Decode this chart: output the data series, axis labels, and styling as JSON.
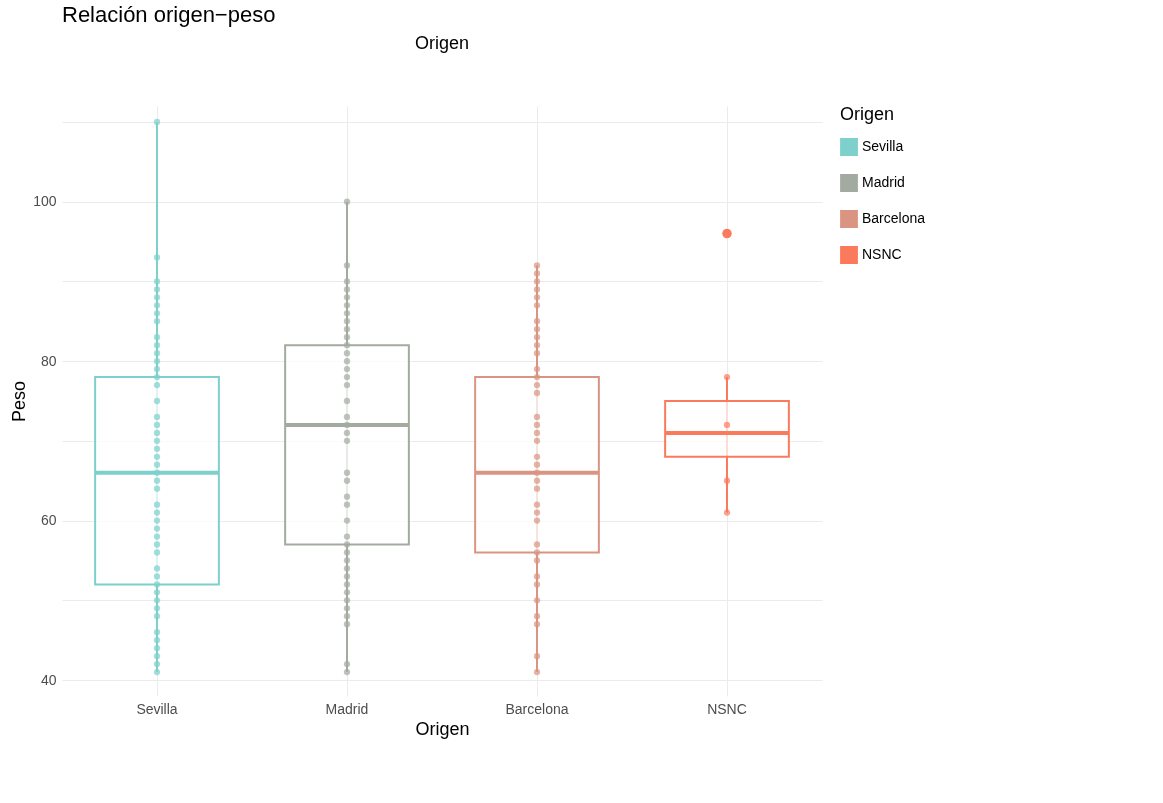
{
  "chart_data": {
    "type": "box",
    "title": "Relación origen−peso",
    "xlabel": "Origen",
    "ylabel": "Peso",
    "legend_title": "Origen",
    "legend": "right",
    "grid": true,
    "annotations": [
      "Origen"
    ],
    "categories": [
      "Sevilla",
      "Madrid",
      "Barcelona",
      "NSNC"
    ],
    "ylim": [
      38,
      112
    ],
    "yticks": [
      40,
      {
        "value": 50,
        "label": null
      },
      60,
      {
        "value": 70,
        "label": null
      },
      80,
      {
        "value": 90,
        "label": null
      },
      100,
      {
        "value": 110,
        "label": null
      }
    ],
    "series": [
      {
        "name": "Sevilla",
        "color": "#7dd0cc",
        "boxes": [
          {
            "low": 41,
            "q1": 52,
            "median": 66,
            "q3": 78,
            "high": 110
          },
          null,
          null,
          null
        ]
      },
      {
        "name": "Madrid",
        "color": "#a3aba0",
        "boxes": [
          null,
          {
            "low": 41,
            "q1": 57,
            "median": 72,
            "q3": 82,
            "high": 100
          },
          null,
          null
        ]
      },
      {
        "name": "Barcelona",
        "color": "#d99582",
        "boxes": [
          null,
          null,
          {
            "low": 41,
            "q1": 56,
            "median": 66,
            "q3": 78,
            "high": 92
          },
          null
        ]
      },
      {
        "name": "NSNC",
        "color": "#fb7a5c",
        "boxes": [
          null,
          null,
          null,
          {
            "low": 61,
            "q1": 68,
            "median": 71,
            "q3": 75,
            "high": 78,
            "outliers": [
              96
            ]
          }
        ]
      },
      {
        "type": "scatter",
        "color": "#7dd0cc",
        "x": [
          "Sevilla",
          "Sevilla",
          "Sevilla",
          "Sevilla",
          "Sevilla",
          "Sevilla",
          "Sevilla",
          "Sevilla",
          "Sevilla",
          "Sevilla",
          "Sevilla",
          "Sevilla",
          "Sevilla",
          "Sevilla",
          "Sevilla",
          "Sevilla",
          "Sevilla",
          "Sevilla",
          "Sevilla",
          "Sevilla",
          "Sevilla",
          "Sevilla",
          "Sevilla",
          "Sevilla",
          "Sevilla",
          "Sevilla",
          "Sevilla",
          "Sevilla",
          "Sevilla",
          "Sevilla",
          "Sevilla",
          "Sevilla",
          "Sevilla",
          "Sevilla",
          "Sevilla",
          "Sevilla",
          "Sevilla",
          "Sevilla",
          "Sevilla",
          "Sevilla",
          "Sevilla",
          "Sevilla",
          "Sevilla",
          "Sevilla",
          "Sevilla",
          "Sevilla"
        ],
        "values": [
          110,
          93,
          90,
          89,
          88,
          87,
          86,
          85,
          83,
          82,
          81,
          80,
          79,
          78,
          77,
          75,
          73,
          72,
          71,
          70,
          69,
          68,
          67,
          66,
          65,
          64,
          62,
          61,
          60,
          59,
          58,
          57,
          56,
          54,
          53,
          52,
          51,
          50,
          49,
          48,
          46,
          45,
          44,
          43,
          42,
          41
        ]
      },
      {
        "type": "scatter",
        "color": "#a3aba0",
        "x": [
          "Madrid",
          "Madrid",
          "Madrid",
          "Madrid",
          "Madrid",
          "Madrid",
          "Madrid",
          "Madrid",
          "Madrid",
          "Madrid",
          "Madrid",
          "Madrid",
          "Madrid",
          "Madrid",
          "Madrid",
          "Madrid",
          "Madrid",
          "Madrid",
          "Madrid",
          "Madrid",
          "Madrid",
          "Madrid",
          "Madrid",
          "Madrid",
          "Madrid",
          "Madrid",
          "Madrid",
          "Madrid",
          "Madrid",
          "Madrid",
          "Madrid",
          "Madrid",
          "Madrid",
          "Madrid",
          "Madrid",
          "Madrid",
          "Madrid",
          "Madrid",
          "Madrid",
          "Madrid"
        ],
        "values": [
          100,
          92,
          90,
          89,
          88,
          87,
          86,
          85,
          84,
          83,
          82,
          81,
          80,
          79,
          78,
          77,
          75,
          73,
          72,
          71,
          70,
          66,
          65,
          63,
          62,
          60,
          58,
          57,
          56,
          55,
          54,
          53,
          52,
          51,
          50,
          49,
          48,
          47,
          42,
          41
        ]
      },
      {
        "type": "scatter",
        "color": "#d99582",
        "x": [
          "Barcelona",
          "Barcelona",
          "Barcelona",
          "Barcelona",
          "Barcelona",
          "Barcelona",
          "Barcelona",
          "Barcelona",
          "Barcelona",
          "Barcelona",
          "Barcelona",
          "Barcelona",
          "Barcelona",
          "Barcelona",
          "Barcelona",
          "Barcelona",
          "Barcelona",
          "Barcelona",
          "Barcelona",
          "Barcelona",
          "Barcelona",
          "Barcelona",
          "Barcelona",
          "Barcelona",
          "Barcelona",
          "Barcelona",
          "Barcelona",
          "Barcelona",
          "Barcelona",
          "Barcelona",
          "Barcelona",
          "Barcelona",
          "Barcelona",
          "Barcelona",
          "Barcelona",
          "Barcelona",
          "Barcelona"
        ],
        "values": [
          92,
          91,
          90,
          89,
          88,
          87,
          85,
          84,
          83,
          82,
          81,
          79,
          78,
          77,
          76,
          73,
          72,
          71,
          70,
          68,
          67,
          66,
          65,
          64,
          62,
          61,
          60,
          57,
          56,
          55,
          53,
          52,
          50,
          48,
          47,
          43,
          41
        ]
      },
      {
        "type": "scatter",
        "color": "#fb7a5c",
        "x": [
          "NSNC",
          "NSNC",
          "NSNC",
          "NSNC"
        ],
        "values": [
          78,
          72,
          65,
          61
        ]
      }
    ]
  }
}
